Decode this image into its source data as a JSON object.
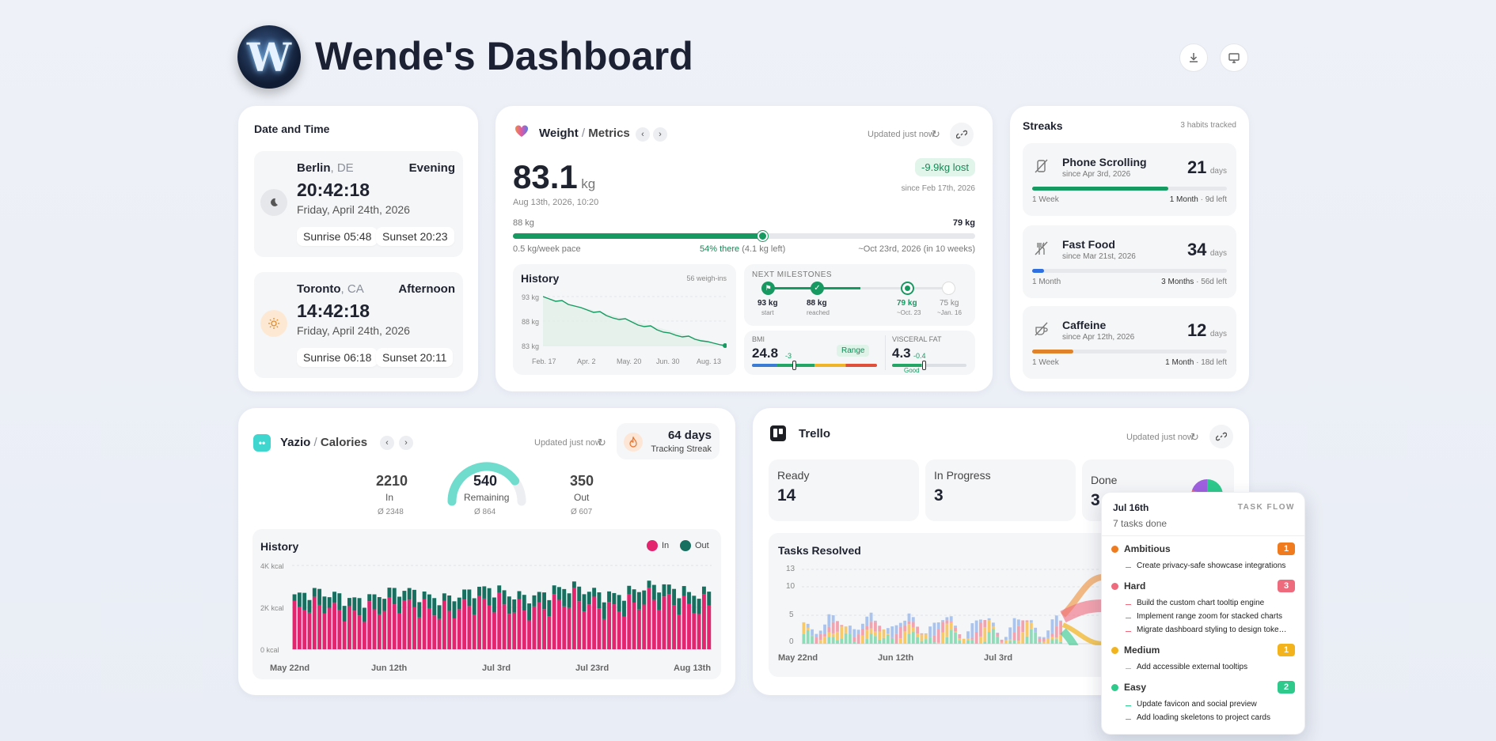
{
  "header": {
    "title": "Wende's Dashboard",
    "logo_letter": "W"
  },
  "datetime": {
    "title": "Date and Time",
    "cities": [
      {
        "city": "Berlin",
        "country": ", DE",
        "period": "Evening",
        "time": "20:42:18",
        "date": "Friday, April 24th, 2026",
        "sunrise": "Sunrise 05:48",
        "sunset": "Sunset 20:23"
      },
      {
        "city": "Toronto",
        "country": ", CA",
        "period": "Afternoon",
        "time": "14:42:18",
        "date": "Friday, April 24th, 2026",
        "sunrise": "Sunrise 06:18",
        "sunset": "Sunset 20:11"
      }
    ]
  },
  "weight": {
    "title": "Weight",
    "sep": "/",
    "subtitle": "Metrics",
    "updated": "Updated just now",
    "value": "83.1",
    "unit": "kg",
    "timestamp": "Aug 13th, 2026, 10:20",
    "lost": "-9.9kg lost",
    "since": "since Feb 17th, 2026",
    "start_label": "88 kg",
    "goal_label": "79 kg",
    "progress": 0.54,
    "pace": "0.5 kg/week pace",
    "there": "54% there",
    "left": "(4.1 kg left)",
    "eta": "~Oct 23rd, 2026 (in 10 weeks)",
    "history": {
      "title": "History",
      "count": "56 weigh-ins",
      "y_ticks": [
        "93 kg",
        "88 kg",
        "83 kg"
      ],
      "x_ticks": [
        "Feb. 17",
        "Apr. 2",
        "May. 20",
        "Jun. 30",
        "Aug. 13"
      ]
    },
    "milestones": {
      "title": "NEXT MILESTONES",
      "items": [
        {
          "kg": "93 kg",
          "note": "start"
        },
        {
          "kg": "88 kg",
          "note": "reached"
        },
        {
          "kg": "79 kg",
          "note": "~Oct. 23"
        },
        {
          "kg": "75 kg",
          "note": "~Jan. 16"
        }
      ]
    },
    "bmi": {
      "label": "BMI",
      "value": "24.8",
      "delta": "-3",
      "status": "Range"
    },
    "visceral": {
      "label": "VISCERAL FAT",
      "value": "4.3",
      "delta": "-0.4",
      "status": "Good"
    }
  },
  "streaks": {
    "title": "Streaks",
    "count": "3 habits tracked",
    "items": [
      {
        "name": "Phone Scrolling",
        "since": "since Apr 3rd, 2026",
        "days": "21",
        "unit": "days",
        "left": "1 Week",
        "right": "1 Month",
        "extra": "9d left",
        "progress": 0.7,
        "color": "#179a62"
      },
      {
        "name": "Fast Food",
        "since": "since Mar 21st, 2026",
        "days": "34",
        "unit": "days",
        "left": "1 Month",
        "right": "3 Months",
        "extra": "56d left",
        "progress": 0.06,
        "color": "#2f6fe0"
      },
      {
        "name": "Caffeine",
        "since": "since Apr 12th, 2026",
        "days": "12",
        "unit": "days",
        "left": "1 Week",
        "right": "1 Month",
        "extra": "18d left",
        "progress": 0.21,
        "color": "#e0822a"
      }
    ]
  },
  "yazio": {
    "title": "Yazio",
    "sep": "/",
    "subtitle": "Calories",
    "updated": "Updated just now",
    "streak_days": "64 days",
    "streak_label": "Tracking Streak",
    "in": {
      "value": "2210",
      "label": "In",
      "avg": "Ø 2348"
    },
    "remaining": {
      "value": "540",
      "label": "Remaining",
      "avg": "Ø 864",
      "fraction": 0.8
    },
    "out": {
      "value": "350",
      "label": "Out",
      "avg": "Ø 607"
    },
    "history": {
      "title": "History",
      "legend_in": "In",
      "legend_out": "Out",
      "y_ticks": [
        "4K kcal",
        "2K kcal",
        "0 kcal"
      ],
      "x_ticks": [
        "May 22nd",
        "Jun 12th",
        "Jul 3rd",
        "Jul 23rd",
        "Aug 13th"
      ]
    }
  },
  "trello": {
    "title": "Trello",
    "updated": "Updated just now",
    "stats": [
      {
        "label": "Ready",
        "value": "14"
      },
      {
        "label": "In Progress",
        "value": "3"
      },
      {
        "label": "Done",
        "value": "3"
      }
    ],
    "resolved": {
      "title": "Tasks Resolved",
      "y_ticks": [
        "13",
        "10",
        "5",
        "0"
      ],
      "x_ticks": [
        "May 22nd",
        "Jun 12th",
        "Jul 3rd"
      ]
    },
    "tooltip": {
      "date": "Jul 16th",
      "count": "7 tasks done",
      "flow": "TASK FLOW",
      "groups": [
        {
          "name": "Ambitious",
          "count": "1",
          "color": "#f07a1e",
          "tasks": [
            "Create privacy-safe showcase integrations"
          ]
        },
        {
          "name": "Hard",
          "count": "3",
          "color": "#ee6b7d",
          "tasks": [
            "Build the custom chart tooltip engine",
            "Implement range zoom for stacked charts",
            "Migrate dashboard styling to design toke…"
          ]
        },
        {
          "name": "Medium",
          "count": "1",
          "color": "#f2b31d",
          "tasks": [
            "Add accessible external tooltips"
          ]
        },
        {
          "name": "Easy",
          "count": "2",
          "color": "#2ec98b",
          "tasks": [
            "Update favicon and social preview",
            "Add loading skeletons to project cards"
          ]
        }
      ]
    }
  },
  "colors": {
    "green": "#179a62",
    "pink": "#e3246e",
    "teal": "#17705f"
  }
}
